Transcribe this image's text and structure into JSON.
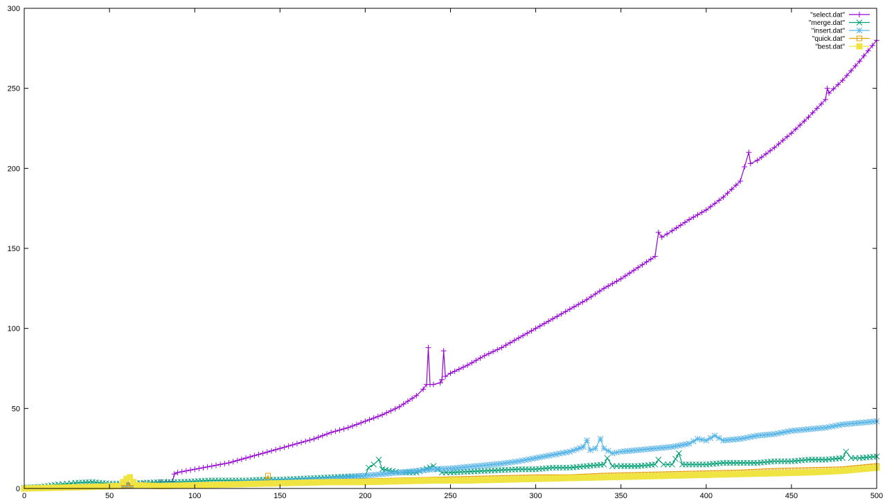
{
  "chart_data": {
    "type": "line",
    "title": "",
    "xlabel": "",
    "ylabel": "",
    "xlim": [
      0,
      500
    ],
    "ylim": [
      0,
      300
    ],
    "xticks": [
      0,
      50,
      100,
      150,
      200,
      250,
      300,
      350,
      400,
      450,
      500
    ],
    "yticks": [
      0,
      50,
      100,
      150,
      200,
      250,
      300
    ],
    "grid": false,
    "legend_position": "top-right",
    "series": [
      {
        "name": "\"select.dat\"",
        "color": "#9400d3",
        "marker": "plus",
        "points": [
          [
            0,
            0
          ],
          [
            10,
            0.4
          ],
          [
            20,
            0.8
          ],
          [
            30,
            1.2
          ],
          [
            40,
            1.5
          ],
          [
            50,
            1.8
          ],
          [
            60,
            2.2
          ],
          [
            70,
            3
          ],
          [
            80,
            4
          ],
          [
            87,
            4.5
          ],
          [
            88,
            9
          ],
          [
            90,
            10
          ],
          [
            95,
            11
          ],
          [
            100,
            12
          ],
          [
            110,
            14
          ],
          [
            120,
            16
          ],
          [
            130,
            19
          ],
          [
            140,
            22
          ],
          [
            150,
            25
          ],
          [
            160,
            28
          ],
          [
            170,
            31
          ],
          [
            180,
            35
          ],
          [
            190,
            38
          ],
          [
            200,
            42
          ],
          [
            210,
            46
          ],
          [
            220,
            51
          ],
          [
            230,
            58
          ],
          [
            234,
            62
          ],
          [
            236,
            65
          ],
          [
            237,
            88
          ],
          [
            238,
            65
          ],
          [
            240,
            65
          ],
          [
            244,
            66
          ],
          [
            245,
            68
          ],
          [
            246,
            86
          ],
          [
            247,
            70
          ],
          [
            250,
            72
          ],
          [
            260,
            77
          ],
          [
            270,
            83
          ],
          [
            280,
            88
          ],
          [
            290,
            94
          ],
          [
            300,
            100
          ],
          [
            310,
            106
          ],
          [
            320,
            112
          ],
          [
            330,
            118
          ],
          [
            340,
            125
          ],
          [
            350,
            131
          ],
          [
            360,
            138
          ],
          [
            370,
            145
          ],
          [
            372,
            160
          ],
          [
            374,
            157
          ],
          [
            380,
            161
          ],
          [
            390,
            168
          ],
          [
            400,
            174
          ],
          [
            410,
            182
          ],
          [
            420,
            192
          ],
          [
            425,
            210
          ],
          [
            426,
            203
          ],
          [
            430,
            205
          ],
          [
            440,
            213
          ],
          [
            450,
            222
          ],
          [
            460,
            232
          ],
          [
            470,
            243
          ],
          [
            471,
            250
          ],
          [
            472,
            247
          ],
          [
            480,
            255
          ],
          [
            490,
            267
          ],
          [
            500,
            280
          ]
        ]
      },
      {
        "name": "\"merge.dat\"",
        "color": "#009e73",
        "marker": "cross",
        "points": [
          [
            0,
            0.5
          ],
          [
            10,
            1
          ],
          [
            20,
            2.5
          ],
          [
            25,
            3
          ],
          [
            30,
            3.5
          ],
          [
            40,
            4
          ],
          [
            50,
            3
          ],
          [
            60,
            3
          ],
          [
            70,
            3.5
          ],
          [
            80,
            4
          ],
          [
            90,
            4
          ],
          [
            100,
            4.5
          ],
          [
            110,
            5
          ],
          [
            120,
            5
          ],
          [
            130,
            5
          ],
          [
            140,
            5.5
          ],
          [
            150,
            5.5
          ],
          [
            160,
            6
          ],
          [
            170,
            6.5
          ],
          [
            180,
            7
          ],
          [
            190,
            7.5
          ],
          [
            200,
            8
          ],
          [
            202,
            13
          ],
          [
            205,
            15
          ],
          [
            208,
            18
          ],
          [
            210,
            12
          ],
          [
            220,
            10
          ],
          [
            230,
            10
          ],
          [
            240,
            14
          ],
          [
            245,
            10
          ],
          [
            250,
            10
          ],
          [
            260,
            10.5
          ],
          [
            270,
            11
          ],
          [
            280,
            11.5
          ],
          [
            290,
            12
          ],
          [
            300,
            12
          ],
          [
            310,
            13
          ],
          [
            320,
            13
          ],
          [
            330,
            14
          ],
          [
            340,
            15
          ],
          [
            342,
            19
          ],
          [
            345,
            14
          ],
          [
            350,
            14
          ],
          [
            360,
            14
          ],
          [
            370,
            15
          ],
          [
            372,
            18
          ],
          [
            375,
            15
          ],
          [
            380,
            15
          ],
          [
            384,
            22
          ],
          [
            386,
            15
          ],
          [
            390,
            15
          ],
          [
            400,
            15
          ],
          [
            410,
            16
          ],
          [
            420,
            16
          ],
          [
            430,
            16
          ],
          [
            440,
            17
          ],
          [
            450,
            17
          ],
          [
            460,
            18
          ],
          [
            470,
            18
          ],
          [
            480,
            19
          ],
          [
            482,
            23
          ],
          [
            485,
            19
          ],
          [
            490,
            19
          ],
          [
            500,
            20
          ]
        ]
      },
      {
        "name": "\"insert.dat\"",
        "color": "#56b4e9",
        "marker": "star",
        "points": [
          [
            0,
            0
          ],
          [
            20,
            0.5
          ],
          [
            40,
            1
          ],
          [
            60,
            1.5
          ],
          [
            80,
            2
          ],
          [
            100,
            2.5
          ],
          [
            120,
            3
          ],
          [
            140,
            4
          ],
          [
            150,
            4.5
          ],
          [
            160,
            5
          ],
          [
            170,
            5.5
          ],
          [
            180,
            6
          ],
          [
            190,
            7
          ],
          [
            200,
            8
          ],
          [
            210,
            9
          ],
          [
            220,
            10
          ],
          [
            230,
            11
          ],
          [
            240,
            12
          ],
          [
            250,
            12.5
          ],
          [
            260,
            13.5
          ],
          [
            270,
            14.5
          ],
          [
            280,
            15.5
          ],
          [
            290,
            17
          ],
          [
            300,
            19
          ],
          [
            310,
            21
          ],
          [
            320,
            23
          ],
          [
            328,
            26
          ],
          [
            330,
            30
          ],
          [
            332,
            24
          ],
          [
            335,
            25
          ],
          [
            338,
            31
          ],
          [
            340,
            25
          ],
          [
            345,
            22
          ],
          [
            350,
            23
          ],
          [
            360,
            24
          ],
          [
            370,
            25
          ],
          [
            380,
            26
          ],
          [
            390,
            28
          ],
          [
            395,
            31
          ],
          [
            400,
            30
          ],
          [
            405,
            33
          ],
          [
            410,
            30
          ],
          [
            420,
            31
          ],
          [
            430,
            33
          ],
          [
            440,
            34
          ],
          [
            450,
            36
          ],
          [
            460,
            37
          ],
          [
            470,
            38
          ],
          [
            480,
            40
          ],
          [
            490,
            41
          ],
          [
            500,
            42
          ]
        ]
      },
      {
        "name": "\"quick.dat\"",
        "color": "#e69f00",
        "marker": "open-square",
        "points": [
          [
            0,
            0
          ],
          [
            20,
            0.5
          ],
          [
            40,
            1
          ],
          [
            60,
            2
          ],
          [
            70,
            1.5
          ],
          [
            80,
            1.5
          ],
          [
            100,
            2
          ],
          [
            120,
            2.5
          ],
          [
            140,
            3
          ],
          [
            143,
            8
          ],
          [
            145,
            3
          ],
          [
            160,
            3.5
          ],
          [
            180,
            4
          ],
          [
            200,
            4.5
          ],
          [
            220,
            5
          ],
          [
            240,
            5.5
          ],
          [
            260,
            6
          ],
          [
            280,
            6.5
          ],
          [
            300,
            7
          ],
          [
            320,
            7
          ],
          [
            340,
            8
          ],
          [
            360,
            8.5
          ],
          [
            380,
            9
          ],
          [
            400,
            9.5
          ],
          [
            420,
            10
          ],
          [
            440,
            11
          ],
          [
            460,
            11.5
          ],
          [
            480,
            12
          ],
          [
            490,
            13
          ],
          [
            500,
            14
          ]
        ]
      },
      {
        "name": "\"best.dat\"",
        "color": "#f0e442",
        "marker": "filled-square",
        "points": [
          [
            0,
            0
          ],
          [
            20,
            0.5
          ],
          [
            40,
            1
          ],
          [
            55,
            1.5
          ],
          [
            58,
            4
          ],
          [
            60,
            6
          ],
          [
            62,
            7
          ],
          [
            64,
            4
          ],
          [
            66,
            2
          ],
          [
            80,
            1.5
          ],
          [
            100,
            2
          ],
          [
            120,
            2.5
          ],
          [
            140,
            3
          ],
          [
            160,
            3.5
          ],
          [
            180,
            4
          ],
          [
            200,
            4
          ],
          [
            220,
            4.5
          ],
          [
            240,
            5
          ],
          [
            260,
            5
          ],
          [
            280,
            5.5
          ],
          [
            300,
            6
          ],
          [
            320,
            6.5
          ],
          [
            340,
            7
          ],
          [
            360,
            7.5
          ],
          [
            380,
            8
          ],
          [
            400,
            8.5
          ],
          [
            420,
            9
          ],
          [
            440,
            9.5
          ],
          [
            460,
            10
          ],
          [
            480,
            11
          ],
          [
            500,
            13
          ]
        ]
      }
    ]
  }
}
